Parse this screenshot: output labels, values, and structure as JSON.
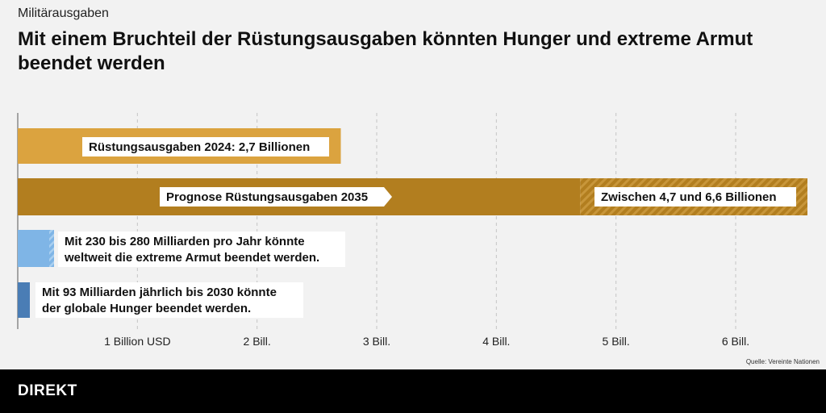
{
  "header": {
    "kicker": "Militärausgaben",
    "title": "Mit einem Bruchteil der Rüstungsausgaben könnten Hunger und extreme Armut beendet werden"
  },
  "chart_data": {
    "type": "bar",
    "orientation": "horizontal",
    "unit": "Billionen USD",
    "xlim": [
      0,
      6.6
    ],
    "x_ticks": [
      1,
      2,
      3,
      4,
      5,
      6
    ],
    "x_tick_labels": [
      "1 Billion USD",
      "2 Bill.",
      "3 Bill.",
      "4 Bill.",
      "5 Bill.",
      "6 Bill."
    ],
    "grid": "vertical-dashed",
    "bars": [
      {
        "name": "ruestung-2024",
        "value": 2.7,
        "color": "#dba33f",
        "labels": [
          "Rüstungsausgaben 2024: 2,7 Billionen"
        ]
      },
      {
        "name": "prognose-2035",
        "range": [
          4.7,
          6.6
        ],
        "color": "#b27e1f",
        "labels": [
          "Prognose Rüstungsausgaben 2035",
          "Zwischen 4,7 und 6,6 Billionen"
        ]
      },
      {
        "name": "armut",
        "range": [
          0.23,
          0.28
        ],
        "color": "#7fb5e6",
        "labels": [
          "Mit 230 bis 280 Milliarden pro Jahr könnte",
          "weltweit die extreme Armut beendet werden."
        ]
      },
      {
        "name": "hunger",
        "value": 0.093,
        "color": "#4a7db5",
        "labels": [
          "Mit 93 Milliarden jährlich bis 2030 könnte",
          "der globale Hunger beendet werden."
        ]
      }
    ]
  },
  "source": "Quelle: Vereinte Nationen",
  "footer": {
    "brand": "DIREKT"
  }
}
